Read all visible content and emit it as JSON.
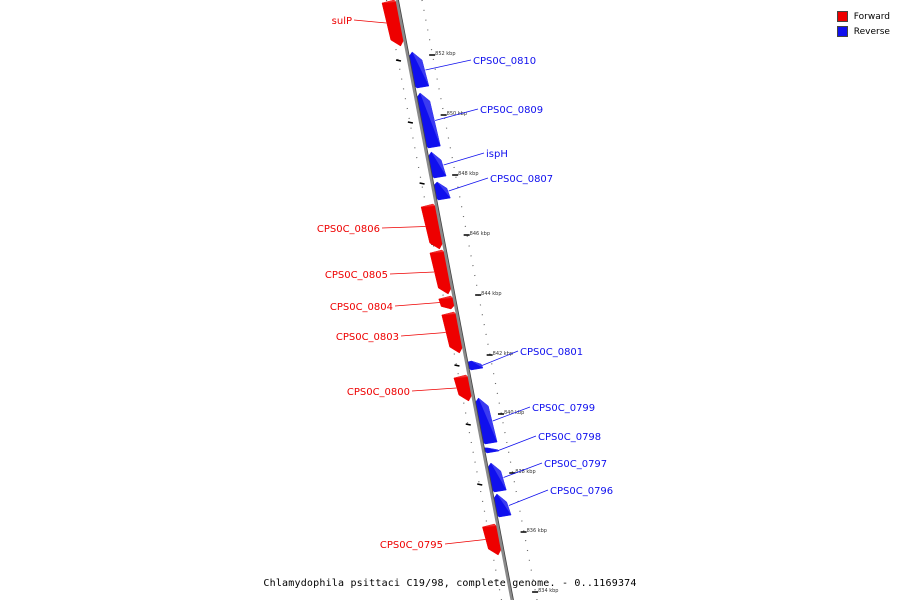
{
  "caption": "Chlamydophila psittaci C19/98, complete genome. - 0..1169374",
  "legend": {
    "items": [
      {
        "label": "Forward",
        "color": "#ee0000"
      },
      {
        "label": "Reverse",
        "color": "#1010ee"
      }
    ]
  },
  "colors": {
    "forward": "#ee0000",
    "reverse": "#1010ee",
    "backbone": "#808080"
  },
  "scale_labels": [
    {
      "label": "852 kbp",
      "kbp": 852
    },
    {
      "label": "850 kbp",
      "kbp": 850
    },
    {
      "label": "848 kbp",
      "kbp": 848
    },
    {
      "label": "846 kbp",
      "kbp": 846
    },
    {
      "label": "844 kbp",
      "kbp": 844
    },
    {
      "label": "842 kbp",
      "kbp": 842
    },
    {
      "label": "840 kbp",
      "kbp": 840
    },
    {
      "label": "838 kbp",
      "kbp": 838
    },
    {
      "label": "836 kbp",
      "kbp": 836
    },
    {
      "label": "834 kbp",
      "kbp": 834
    }
  ],
  "features": [
    {
      "name": "sulP",
      "strand": "forward"
    },
    {
      "name": "CPS0C_0810",
      "strand": "reverse"
    },
    {
      "name": "CPS0C_0809",
      "strand": "reverse"
    },
    {
      "name": "ispH",
      "strand": "reverse"
    },
    {
      "name": "CPS0C_0807",
      "strand": "reverse"
    },
    {
      "name": "CPS0C_0806",
      "strand": "forward"
    },
    {
      "name": "CPS0C_0805",
      "strand": "forward"
    },
    {
      "name": "CPS0C_0804",
      "strand": "forward"
    },
    {
      "name": "CPS0C_0803",
      "strand": "forward"
    },
    {
      "name": "CPS0C_0801",
      "strand": "reverse"
    },
    {
      "name": "CPS0C_0800",
      "strand": "forward"
    },
    {
      "name": "CPS0C_0799",
      "strand": "reverse"
    },
    {
      "name": "CPS0C_0798",
      "strand": "reverse"
    },
    {
      "name": "CPS0C_0797",
      "strand": "reverse"
    },
    {
      "name": "CPS0C_0796",
      "strand": "reverse"
    },
    {
      "name": "CPS0C_0795",
      "strand": "forward"
    }
  ]
}
